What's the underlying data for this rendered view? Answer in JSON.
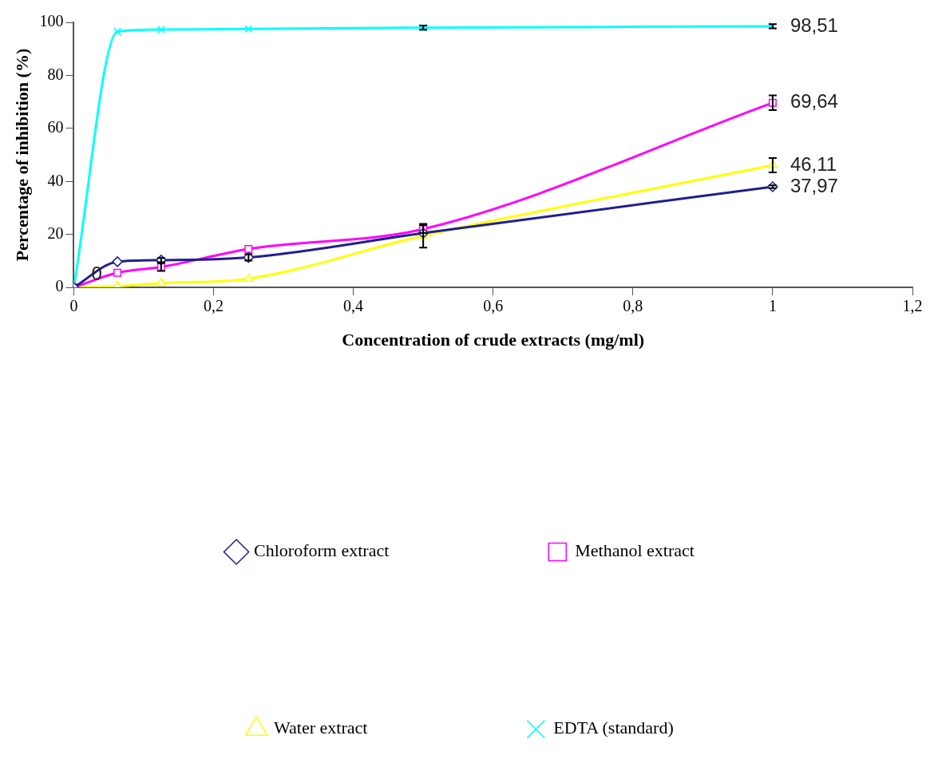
{
  "chart_data": {
    "type": "line",
    "xlabel": "Concentration of crude extracts (mg/ml)",
    "ylabel": "Percentage of inhibition (%)",
    "x": [
      0,
      0.0625,
      0.125,
      0.25,
      0.5,
      1
    ],
    "xlim": [
      0,
      1.2
    ],
    "xticks": [
      0,
      {
        "value": 0.2,
        "label": "0,2"
      },
      {
        "value": 0.4,
        "label": "0,4"
      },
      {
        "value": 0.6,
        "label": "0,6"
      },
      {
        "value": 0.8,
        "label": "0,8"
      },
      1,
      {
        "value": 1.2,
        "label": "1,2"
      }
    ],
    "ylim": [
      0,
      100
    ],
    "yticks": [
      0,
      20,
      40,
      60,
      80,
      100
    ],
    "grid": false,
    "legend": "bottom",
    "series": [
      {
        "name": "Chloroform extract",
        "color": "#1f1f8f",
        "marker": "diamond",
        "values": [
          0,
          9.7,
          10.3,
          11.3,
          20.5,
          37.97
        ],
        "errors": [
          null,
          null,
          0.8,
          1.2,
          null,
          0.5
        ],
        "value_labels": [
          "0",
          null,
          null,
          null,
          null,
          "37,97"
        ]
      },
      {
        "name": "Methanol extract",
        "color": "#ff00ff",
        "marker": "square",
        "values": [
          0,
          5.5,
          7.7,
          14.5,
          22,
          69.64
        ],
        "errors": [
          null,
          null,
          1.5,
          null,
          1.5,
          2.8
        ],
        "value_labels": [
          null,
          null,
          null,
          null,
          null,
          "69,64"
        ]
      },
      {
        "name": "Water extract",
        "color": "#ffff00",
        "marker": "triangle",
        "values": [
          0,
          0.5,
          1.6,
          3.3,
          19.5,
          46.11
        ],
        "errors": [
          null,
          null,
          null,
          null,
          4.5,
          2.7
        ],
        "value_labels": [
          null,
          null,
          null,
          null,
          null,
          "46,11"
        ]
      },
      {
        "name": "EDTA (standard)",
        "color": "#00ffff",
        "marker": "cross",
        "values": [
          0,
          96.5,
          97.3,
          97.5,
          98,
          98.51
        ],
        "errors": [
          null,
          null,
          null,
          null,
          0.8,
          0.8
        ],
        "value_labels": [
          null,
          null,
          null,
          null,
          null,
          "98,51"
        ]
      }
    ]
  }
}
